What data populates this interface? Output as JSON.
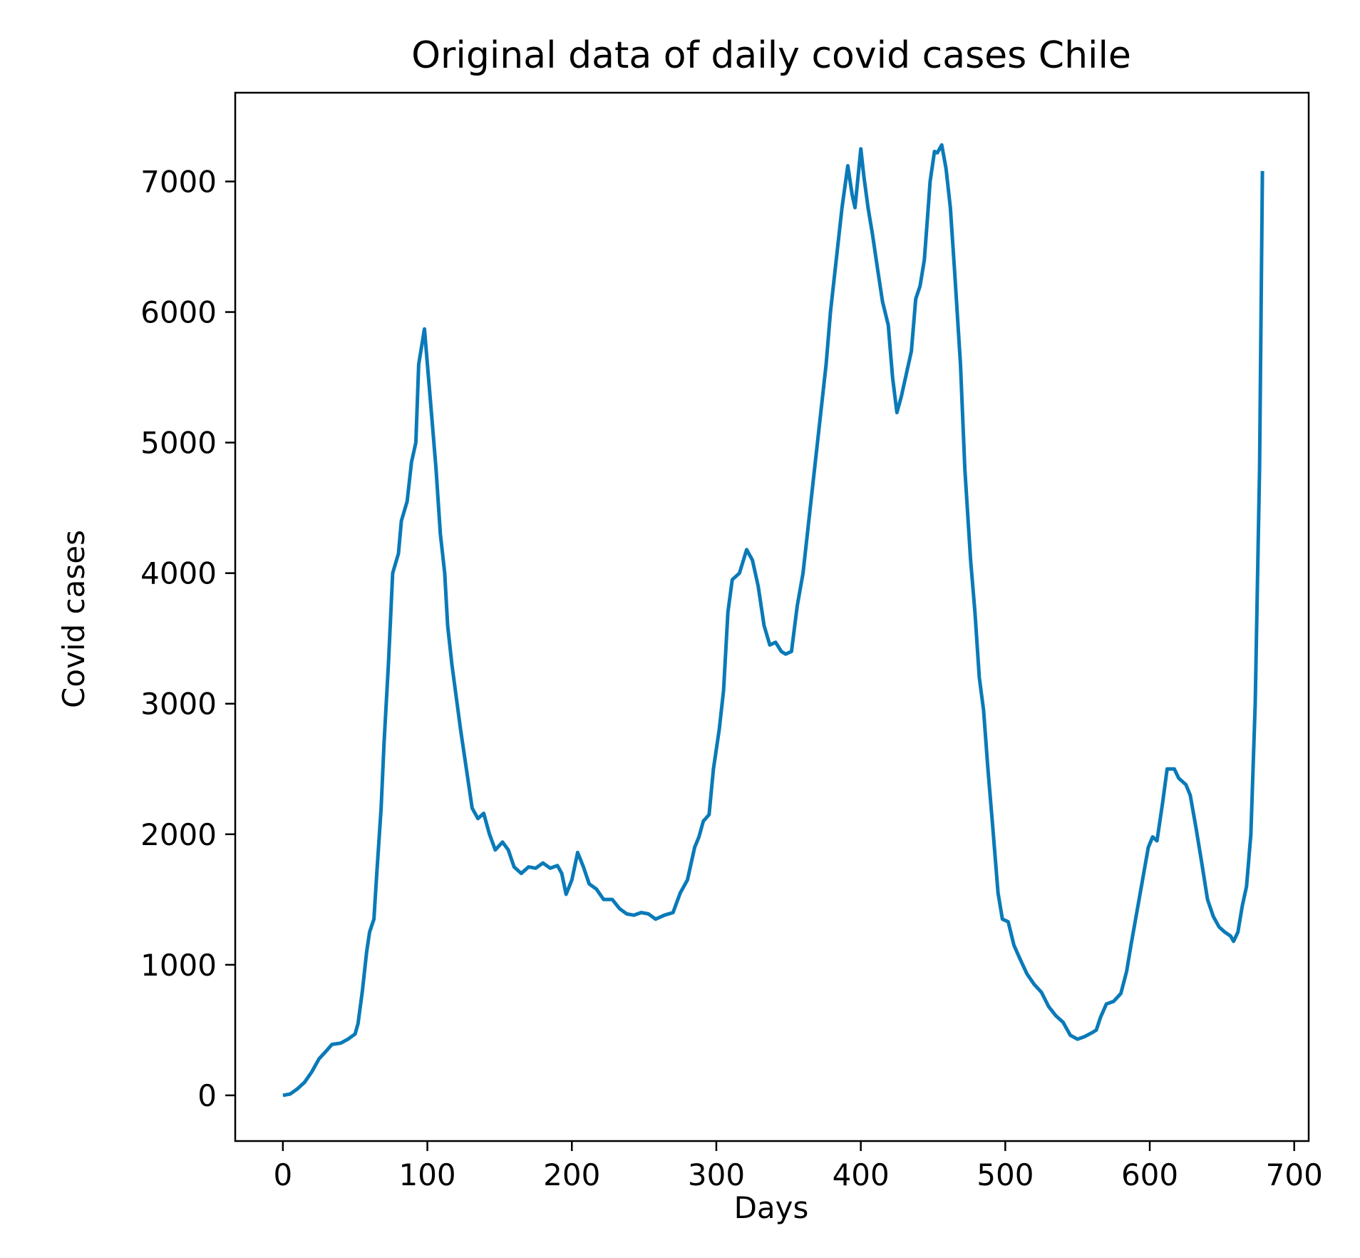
{
  "chart_data": {
    "type": "line",
    "title": "Original data of daily covid cases Chile",
    "xlabel": "Days",
    "ylabel": "Covid cases",
    "xlim": [
      -33,
      710
    ],
    "ylim": [
      -350,
      7680
    ],
    "xticks": [
      0,
      100,
      200,
      300,
      400,
      500,
      600,
      700
    ],
    "yticks": [
      0,
      1000,
      2000,
      3000,
      4000,
      5000,
      6000,
      7000
    ],
    "grid": false,
    "legend": "none",
    "series": [
      {
        "color": "#0a7ab8",
        "points": [
          [
            0,
            0
          ],
          [
            5,
            10
          ],
          [
            10,
            50
          ],
          [
            15,
            100
          ],
          [
            20,
            180
          ],
          [
            25,
            280
          ],
          [
            30,
            340
          ],
          [
            34,
            390
          ],
          [
            40,
            400
          ],
          [
            45,
            430
          ],
          [
            50,
            470
          ],
          [
            52,
            550
          ],
          [
            55,
            800
          ],
          [
            58,
            1100
          ],
          [
            60,
            1250
          ],
          [
            63,
            1350
          ],
          [
            65,
            1700
          ],
          [
            68,
            2200
          ],
          [
            70,
            2700
          ],
          [
            73,
            3300
          ],
          [
            76,
            4000
          ],
          [
            80,
            4150
          ],
          [
            82,
            4400
          ],
          [
            86,
            4550
          ],
          [
            89,
            4850
          ],
          [
            92,
            5000
          ],
          [
            94,
            5600
          ],
          [
            98,
            5870
          ],
          [
            100,
            5600
          ],
          [
            103,
            5200
          ],
          [
            106,
            4800
          ],
          [
            109,
            4300
          ],
          [
            112,
            4000
          ],
          [
            114,
            3600
          ],
          [
            117,
            3300
          ],
          [
            120,
            3050
          ],
          [
            123,
            2800
          ],
          [
            127,
            2500
          ],
          [
            131,
            2200
          ],
          [
            135,
            2120
          ],
          [
            139,
            2160
          ],
          [
            143,
            2000
          ],
          [
            147,
            1880
          ],
          [
            152,
            1940
          ],
          [
            156,
            1880
          ],
          [
            160,
            1750
          ],
          [
            165,
            1700
          ],
          [
            170,
            1750
          ],
          [
            175,
            1740
          ],
          [
            180,
            1780
          ],
          [
            185,
            1740
          ],
          [
            190,
            1760
          ],
          [
            193,
            1700
          ],
          [
            196,
            1540
          ],
          [
            200,
            1650
          ],
          [
            204,
            1860
          ],
          [
            208,
            1750
          ],
          [
            212,
            1620
          ],
          [
            217,
            1580
          ],
          [
            222,
            1500
          ],
          [
            228,
            1500
          ],
          [
            233,
            1430
          ],
          [
            238,
            1390
          ],
          [
            243,
            1380
          ],
          [
            248,
            1400
          ],
          [
            253,
            1390
          ],
          [
            258,
            1350
          ],
          [
            264,
            1380
          ],
          [
            270,
            1400
          ],
          [
            275,
            1550
          ],
          [
            280,
            1650
          ],
          [
            285,
            1900
          ],
          [
            288,
            1980
          ],
          [
            291,
            2100
          ],
          [
            295,
            2150
          ],
          [
            298,
            2500
          ],
          [
            302,
            2800
          ],
          [
            305,
            3100
          ],
          [
            308,
            3700
          ],
          [
            311,
            3950
          ],
          [
            316,
            4000
          ],
          [
            321,
            4180
          ],
          [
            325,
            4100
          ],
          [
            329,
            3900
          ],
          [
            333,
            3600
          ],
          [
            337,
            3450
          ],
          [
            341,
            3470
          ],
          [
            345,
            3400
          ],
          [
            348,
            3380
          ],
          [
            352,
            3400
          ],
          [
            356,
            3750
          ],
          [
            360,
            4000
          ],
          [
            364,
            4400
          ],
          [
            368,
            4800
          ],
          [
            372,
            5200
          ],
          [
            376,
            5600
          ],
          [
            379,
            6000
          ],
          [
            383,
            6400
          ],
          [
            387,
            6800
          ],
          [
            391,
            7120
          ],
          [
            394,
            6900
          ],
          [
            396,
            6800
          ],
          [
            400,
            7250
          ],
          [
            402,
            7050
          ],
          [
            405,
            6800
          ],
          [
            408,
            6600
          ],
          [
            412,
            6300
          ],
          [
            415,
            6080
          ],
          [
            419,
            5900
          ],
          [
            422,
            5500
          ],
          [
            425,
            5230
          ],
          [
            428,
            5350
          ],
          [
            432,
            5550
          ],
          [
            435,
            5700
          ],
          [
            438,
            6100
          ],
          [
            441,
            6200
          ],
          [
            444,
            6400
          ],
          [
            446,
            6700
          ],
          [
            448,
            7000
          ],
          [
            451,
            7230
          ],
          [
            453,
            7220
          ],
          [
            456,
            7280
          ],
          [
            459,
            7100
          ],
          [
            462,
            6800
          ],
          [
            465,
            6300
          ],
          [
            469,
            5600
          ],
          [
            472,
            4800
          ],
          [
            476,
            4100
          ],
          [
            479,
            3700
          ],
          [
            482,
            3200
          ],
          [
            485,
            2950
          ],
          [
            488,
            2500
          ],
          [
            491,
            2100
          ],
          [
            495,
            1550
          ],
          [
            498,
            1350
          ],
          [
            502,
            1330
          ],
          [
            506,
            1150
          ],
          [
            510,
            1050
          ],
          [
            515,
            930
          ],
          [
            520,
            850
          ],
          [
            525,
            790
          ],
          [
            530,
            680
          ],
          [
            535,
            610
          ],
          [
            540,
            560
          ],
          [
            545,
            460
          ],
          [
            550,
            430
          ],
          [
            555,
            450
          ],
          [
            560,
            480
          ],
          [
            563,
            500
          ],
          [
            566,
            600
          ],
          [
            570,
            700
          ],
          [
            575,
            720
          ],
          [
            580,
            780
          ],
          [
            584,
            950
          ],
          [
            587,
            1150
          ],
          [
            591,
            1400
          ],
          [
            595,
            1650
          ],
          [
            599,
            1900
          ],
          [
            602,
            1980
          ],
          [
            605,
            1950
          ],
          [
            609,
            2250
          ],
          [
            612,
            2500
          ],
          [
            617,
            2500
          ],
          [
            620,
            2430
          ],
          [
            625,
            2380
          ],
          [
            628,
            2300
          ],
          [
            632,
            2050
          ],
          [
            636,
            1780
          ],
          [
            640,
            1500
          ],
          [
            644,
            1370
          ],
          [
            648,
            1290
          ],
          [
            652,
            1250
          ],
          [
            656,
            1220
          ],
          [
            658,
            1180
          ],
          [
            661,
            1250
          ],
          [
            664,
            1450
          ],
          [
            667,
            1600
          ],
          [
            670,
            2000
          ],
          [
            673,
            3000
          ],
          [
            676,
            4800
          ],
          [
            678,
            7080
          ]
        ]
      }
    ]
  }
}
